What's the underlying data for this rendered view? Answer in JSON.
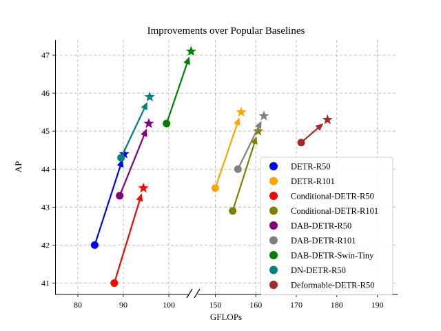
{
  "chart_data": {
    "type": "scatter",
    "title": "Improvements over Popular Baselines",
    "xlabel": "GFLOPs",
    "ylabel": "AP",
    "broken_x_axis": true,
    "segments": [
      {
        "xlim": [
          75,
          105
        ],
        "ticks": [
          80,
          90,
          100
        ]
      },
      {
        "xlim": [
          145,
          195
        ],
        "ticks": [
          150,
          160,
          170,
          180,
          190
        ]
      }
    ],
    "ylim": [
      40.7,
      47.4
    ],
    "yticks": [
      41,
      42,
      43,
      44,
      45,
      46,
      47
    ],
    "grid": true,
    "legend_position": "lower-right",
    "series": [
      {
        "name": "DETR-R50",
        "color": "#0000ff",
        "from": {
          "x": 83.7,
          "y": 42.0
        },
        "to": {
          "x": 90.2,
          "y": 44.4
        }
      },
      {
        "name": "DETR-R101",
        "color": "#ffa500",
        "from": {
          "x": 150.0,
          "y": 43.5
        },
        "to": {
          "x": 156.4,
          "y": 45.5
        }
      },
      {
        "name": "Conditional-DETR-R50",
        "color": "#ff0000",
        "from": {
          "x": 88.0,
          "y": 41.0
        },
        "to": {
          "x": 94.4,
          "y": 43.5
        }
      },
      {
        "name": "Conditional-DETR-R101",
        "color": "#808000",
        "from": {
          "x": 154.3,
          "y": 42.9
        },
        "to": {
          "x": 160.6,
          "y": 45.0
        }
      },
      {
        "name": "DAB-DETR-R50",
        "color": "#800080",
        "from": {
          "x": 89.2,
          "y": 43.3
        },
        "to": {
          "x": 95.6,
          "y": 45.2
        }
      },
      {
        "name": "DAB-DETR-R101",
        "color": "#808080",
        "from": {
          "x": 155.6,
          "y": 44.0
        },
        "to": {
          "x": 162.0,
          "y": 45.4
        }
      },
      {
        "name": "DAB-DETR-Swin-Tiny",
        "color": "#008000",
        "from": {
          "x": 99.5,
          "y": 45.2
        },
        "to": {
          "x": 104.9,
          "y": 47.1
        }
      },
      {
        "name": "DN-DETR-R50",
        "color": "#008080",
        "from": {
          "x": 89.5,
          "y": 44.3
        },
        "to": {
          "x": 95.8,
          "y": 45.9
        }
      },
      {
        "name": "Deformable-DETR-R50",
        "color": "#a52a2a",
        "from": {
          "x": 171.2,
          "y": 44.7
        },
        "to": {
          "x": 177.7,
          "y": 45.3
        }
      }
    ]
  }
}
